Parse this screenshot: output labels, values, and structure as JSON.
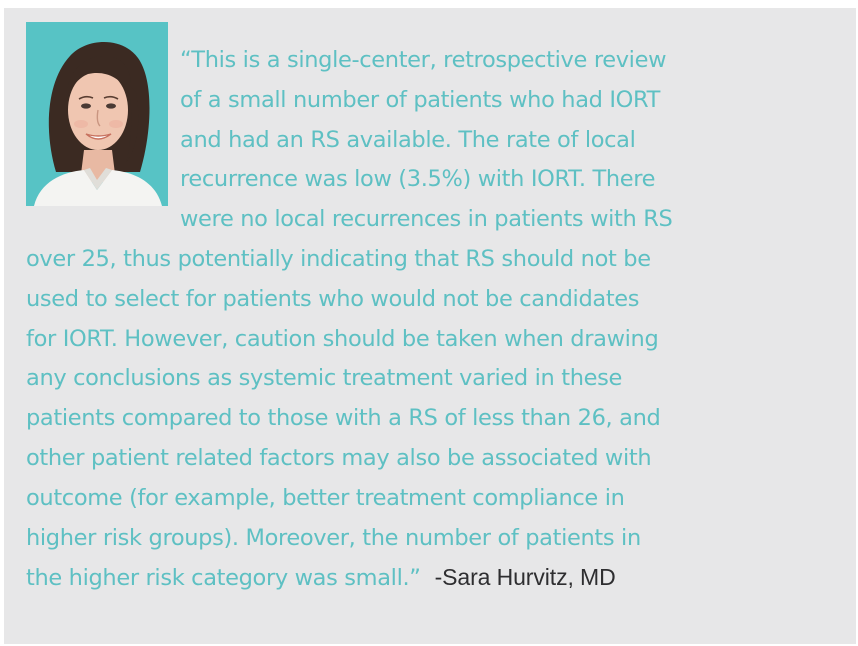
{
  "quote": {
    "lines": [
      "“This is a single-center, retrospective review",
      "of a small number of patients who had IORT",
      "and had an RS available. The rate of local",
      "recurrence was low (3.5%) with IORT. There",
      "were no local recurrences in patients with RS",
      "over 25, thus potentially indicating that RS should not be",
      "used to select for patients who would not be candidates",
      "for IORT. However, caution should be taken when drawing",
      "any conclusions as systemic treatment varied in these",
      "patients compared to those with a RS of less than 26, and",
      "other patient related factors may also be associated with",
      "outcome (for example, better treatment compliance in",
      "higher risk groups). Moreover, the number of patients in",
      "the higher risk category was small.”"
    ],
    "attribution": "-Sara Hurvitz, MD"
  },
  "colors": {
    "card_background": "#e7e7e8",
    "quote_text": "#5ec0c3",
    "attribution_text": "#2e2e30",
    "portrait_background": "#57c3c5"
  },
  "portrait": {
    "icon": "headshot-photo"
  }
}
